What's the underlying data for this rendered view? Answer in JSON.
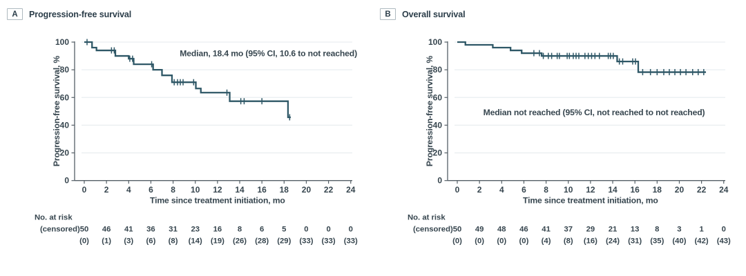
{
  "style": {
    "curve_color": "#2e5766",
    "axis_color": "#555f66",
    "grid_color": "#e9eef0",
    "text_color": "#37464f",
    "annotation_color": "#2c3e4a"
  },
  "chart_data": [
    {
      "type": "line",
      "subtype": "kaplan-meier-step",
      "panel_label": "A",
      "title": "Progression-free survival",
      "annotation": "Median, 18.4 mo (95% CI, 10.6 to not reached)",
      "xlabel": "Time since treatment initiation, mo",
      "ylabel": "Progression-free survival, %",
      "xlim": [
        0,
        24
      ],
      "ylim": [
        0,
        100
      ],
      "xticks": [
        0,
        2,
        4,
        6,
        8,
        10,
        12,
        14,
        16,
        18,
        20,
        22,
        24
      ],
      "yticks": [
        0,
        20,
        40,
        60,
        80,
        100
      ],
      "grid": "horizontal-light",
      "legend": "none",
      "steps": [
        [
          0,
          100
        ],
        [
          0.7,
          96
        ],
        [
          1.1,
          94
        ],
        [
          2.8,
          90
        ],
        [
          4.0,
          88
        ],
        [
          4.45,
          84
        ],
        [
          6.2,
          80
        ],
        [
          7.0,
          76
        ],
        [
          7.9,
          71
        ],
        [
          10.05,
          66.5
        ],
        [
          10.5,
          63.5
        ],
        [
          13.1,
          57.3
        ],
        [
          18.35,
          45.7
        ]
      ],
      "end_x": 18.6,
      "censors": [
        [
          0.25,
          100
        ],
        [
          2.45,
          94
        ],
        [
          2.7,
          94
        ],
        [
          4.1,
          88
        ],
        [
          4.35,
          88
        ],
        [
          6.07,
          84
        ],
        [
          8.1,
          71
        ],
        [
          8.4,
          71
        ],
        [
          8.65,
          71
        ],
        [
          8.9,
          71
        ],
        [
          9.85,
          71
        ],
        [
          12.85,
          63.5
        ],
        [
          14.1,
          57.3
        ],
        [
          14.4,
          57.3
        ],
        [
          16.0,
          57.3
        ],
        [
          18.5,
          45.7
        ]
      ],
      "risk_table": {
        "row1_label": "No. at risk",
        "row2_label": "(censored)",
        "at_risk": [
          "50",
          "46",
          "41",
          "36",
          "31",
          "23",
          "16",
          "8",
          "6",
          "5",
          "0",
          "0",
          "0"
        ],
        "censored": [
          "(0)",
          "(1)",
          "(3)",
          "(6)",
          "(8)",
          "(14)",
          "(19)",
          "(26)",
          "(28)",
          "(29)",
          "(33)",
          "(33)",
          "(33)"
        ]
      }
    },
    {
      "type": "line",
      "subtype": "kaplan-meier-step",
      "panel_label": "B",
      "title": "Overall survival",
      "annotation": "Median not reached (95% CI, not reached to not reached)",
      "xlabel": "Time since treatment initiation, mo",
      "ylabel": "Progression-free survival, %",
      "xlim": [
        0,
        24
      ],
      "ylim": [
        0,
        100
      ],
      "xticks": [
        0,
        2,
        4,
        6,
        8,
        10,
        12,
        14,
        16,
        18,
        20,
        22,
        24
      ],
      "yticks": [
        0,
        20,
        40,
        60,
        80,
        100
      ],
      "grid": "horizontal-light",
      "legend": "none",
      "steps": [
        [
          0,
          100
        ],
        [
          0.73,
          98
        ],
        [
          3.2,
          96
        ],
        [
          4.8,
          94
        ],
        [
          5.8,
          92
        ],
        [
          7.6,
          90
        ],
        [
          14.4,
          86
        ],
        [
          16.3,
          78.3
        ]
      ],
      "end_x": 22.4,
      "censors": [
        [
          6.9,
          92
        ],
        [
          7.4,
          92
        ],
        [
          7.75,
          90
        ],
        [
          8.2,
          90
        ],
        [
          8.5,
          90
        ],
        [
          9.0,
          90
        ],
        [
          9.2,
          90
        ],
        [
          9.9,
          90
        ],
        [
          10.1,
          90
        ],
        [
          10.45,
          90
        ],
        [
          10.7,
          90
        ],
        [
          10.95,
          90
        ],
        [
          11.5,
          90
        ],
        [
          11.8,
          90
        ],
        [
          12.1,
          90
        ],
        [
          12.4,
          90
        ],
        [
          12.8,
          90
        ],
        [
          13.6,
          90
        ],
        [
          13.8,
          90
        ],
        [
          14.05,
          90
        ],
        [
          14.6,
          86
        ],
        [
          14.9,
          86
        ],
        [
          15.8,
          86
        ],
        [
          16.05,
          86
        ],
        [
          16.7,
          78.3
        ],
        [
          17.4,
          78.3
        ],
        [
          18.0,
          78.3
        ],
        [
          18.6,
          78.3
        ],
        [
          19.1,
          78.3
        ],
        [
          19.6,
          78.3
        ],
        [
          20.1,
          78.3
        ],
        [
          20.6,
          78.3
        ],
        [
          21.2,
          78.3
        ],
        [
          21.7,
          78.3
        ],
        [
          22.2,
          78.3
        ]
      ],
      "risk_table": {
        "row1_label": "No. at risk",
        "row2_label": "(censored)",
        "at_risk": [
          "50",
          "49",
          "48",
          "46",
          "41",
          "37",
          "29",
          "21",
          "13",
          "8",
          "3",
          "1",
          "0"
        ],
        "censored": [
          "(0)",
          "(0)",
          "(0)",
          "(0)",
          "(4)",
          "(8)",
          "(16)",
          "(24)",
          "(31)",
          "(35)",
          "(40)",
          "(42)",
          "(43)"
        ]
      }
    }
  ]
}
